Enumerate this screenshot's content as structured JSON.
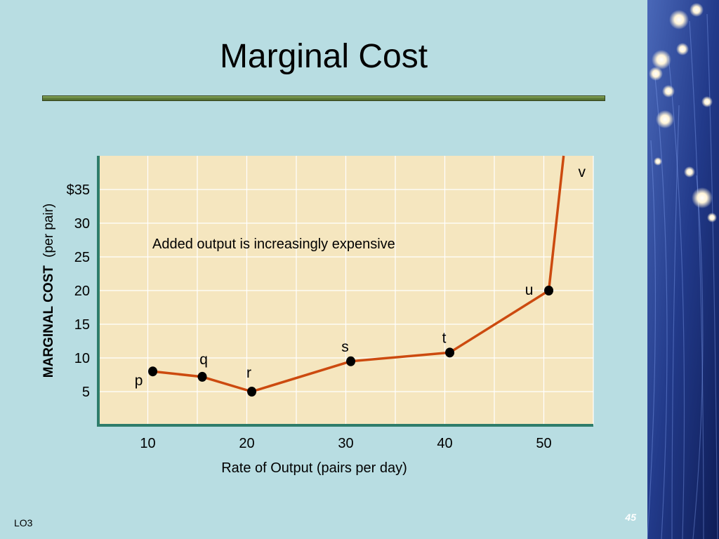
{
  "slide": {
    "title": "Marginal Cost",
    "footer_label": "LO3",
    "page_number": "45"
  },
  "colors": {
    "background": "#b8dde2",
    "plot_area": "#f5e6bf",
    "axes": "#2e7d6b",
    "line": "#cc4a0f",
    "points": "#000000"
  },
  "chart_data": {
    "type": "line",
    "title": "",
    "xlabel": "Rate of Output (pairs per day)",
    "ylabel_bold": "MARGINAL COST",
    "ylabel_rest": "(per pair)",
    "xlim": [
      5,
      55
    ],
    "ylim": [
      0,
      40
    ],
    "x_ticks": [
      10,
      20,
      30,
      40,
      50
    ],
    "x_tick_labels": [
      "10",
      "20",
      "30",
      "40",
      "50"
    ],
    "y_ticks": [
      5,
      10,
      15,
      20,
      25,
      30,
      35
    ],
    "y_tick_labels": [
      "5",
      "10",
      "15",
      "20",
      "25",
      "30",
      "$35"
    ],
    "grid": true,
    "annotation": "Added output is increasingly expensive",
    "series": [
      {
        "points": [
          {
            "label": "p",
            "x": 10.5,
            "y": 8.0
          },
          {
            "label": "q",
            "x": 15.5,
            "y": 7.2
          },
          {
            "label": "r",
            "x": 20.5,
            "y": 5.0
          },
          {
            "label": "s",
            "x": 30.5,
            "y": 9.5
          },
          {
            "label": "t",
            "x": 40.5,
            "y": 10.8
          },
          {
            "label": "u",
            "x": 50.5,
            "y": 20.0
          },
          {
            "label": "v",
            "x": 52.0,
            "y": 40.0
          }
        ]
      }
    ]
  }
}
